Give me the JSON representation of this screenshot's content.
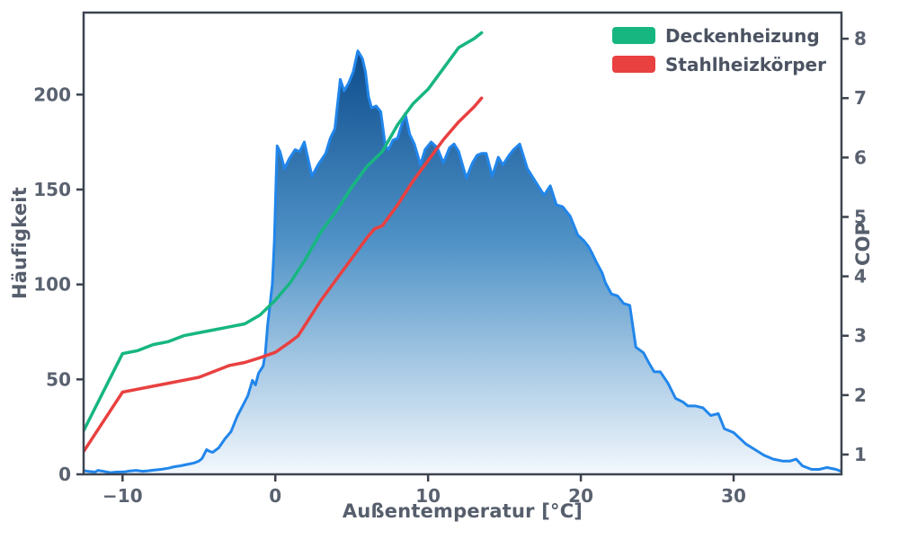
{
  "chart_data": {
    "type": "area+line",
    "xlabel": "Außentemperatur [°C]",
    "ylabel_left": "Häufigkeit",
    "ylabel_right": "COP",
    "x_range": [
      -12.55,
      37.06
    ],
    "x_ticks": [
      {
        "v": -10,
        "label": "−10"
      },
      {
        "v": 0,
        "label": "0"
      },
      {
        "v": 10,
        "label": "10"
      },
      {
        "v": 20,
        "label": "20"
      },
      {
        "v": 30,
        "label": "30"
      }
    ],
    "y_left_range": [
      0,
      243.2
    ],
    "y_left_ticks": [
      {
        "v": 0,
        "label": "0"
      },
      {
        "v": 50,
        "label": "50"
      },
      {
        "v": 100,
        "label": "100"
      },
      {
        "v": 150,
        "label": "150"
      },
      {
        "v": 200,
        "label": "200"
      }
    ],
    "y_right_range": [
      0.667,
      8.44
    ],
    "y_right_ticks": [
      {
        "v": 1,
        "label": "1"
      },
      {
        "v": 2,
        "label": "2"
      },
      {
        "v": 3,
        "label": "3"
      },
      {
        "v": 4,
        "label": "4"
      },
      {
        "v": 5,
        "label": "5"
      },
      {
        "v": 6,
        "label": "6"
      },
      {
        "v": 7,
        "label": "7"
      },
      {
        "v": 8,
        "label": "8"
      }
    ],
    "legend": [
      {
        "label": "Deckenheizung",
        "color": "#17b681"
      },
      {
        "label": "Stahlheizkörper",
        "color": "#e94040"
      }
    ],
    "grid": false,
    "legend_position": "top-right",
    "histogram": {
      "name": "Häufigkeit",
      "axis": "left",
      "line_color": "#2186eb",
      "gradient": [
        "#0d4c8c",
        "#4f92c7",
        "#f3f8fd"
      ],
      "points": [
        [
          -12.55,
          2
        ],
        [
          -12.2,
          1.5
        ],
        [
          -11.8,
          1.2
        ],
        [
          -11.6,
          2.1
        ],
        [
          -11.2,
          1.5
        ],
        [
          -10.8,
          0.9
        ],
        [
          -10.4,
          1.2
        ],
        [
          -9.9,
          1.3
        ],
        [
          -9.5,
          1.8
        ],
        [
          -9.1,
          2.1
        ],
        [
          -8.7,
          1.6
        ],
        [
          -8.4,
          1.8
        ],
        [
          -8.0,
          2.2
        ],
        [
          -7.5,
          2.6
        ],
        [
          -7.0,
          3.2
        ],
        [
          -6.6,
          4
        ],
        [
          -6.2,
          4.5
        ],
        [
          -5.9,
          5
        ],
        [
          -5.6,
          5.5
        ],
        [
          -5.3,
          6
        ],
        [
          -5.0,
          7
        ],
        [
          -4.8,
          8.3
        ],
        [
          -4.5,
          13
        ],
        [
          -4.3,
          12.1
        ],
        [
          -4.1,
          11.6
        ],
        [
          -3.7,
          14
        ],
        [
          -3.3,
          18.7
        ],
        [
          -2.9,
          22.5
        ],
        [
          -2.5,
          30.5
        ],
        [
          -2.1,
          36.7
        ],
        [
          -1.8,
          41.4
        ],
        [
          -1.5,
          49.5
        ],
        [
          -1.3,
          47.1
        ],
        [
          -1.1,
          53.3
        ],
        [
          -0.8,
          57
        ],
        [
          -0.65,
          64
        ],
        [
          -0.5,
          79
        ],
        [
          -0.2,
          100
        ],
        [
          -0.06,
          123
        ],
        [
          0.05,
          155
        ],
        [
          0.12,
          173
        ],
        [
          0.3,
          170
        ],
        [
          0.6,
          161
        ],
        [
          0.9,
          166
        ],
        [
          1.3,
          171
        ],
        [
          1.6,
          170
        ],
        [
          1.9,
          175
        ],
        [
          2.4,
          157
        ],
        [
          2.8,
          163
        ],
        [
          3.3,
          169
        ],
        [
          3.6,
          177
        ],
        [
          3.9,
          182
        ],
        [
          4.25,
          208
        ],
        [
          4.5,
          202
        ],
        [
          4.8,
          206
        ],
        [
          5.1,
          212
        ],
        [
          5.4,
          223
        ],
        [
          5.7,
          219
        ],
        [
          5.9,
          212
        ],
        [
          6.1,
          199
        ],
        [
          6.3,
          193
        ],
        [
          6.6,
          194
        ],
        [
          6.9,
          191
        ],
        [
          7.2,
          173
        ],
        [
          7.4,
          171
        ],
        [
          7.7,
          176
        ],
        [
          8.0,
          177
        ],
        [
          8.5,
          190
        ],
        [
          8.8,
          179
        ],
        [
          9.1,
          174
        ],
        [
          9.5,
          163
        ],
        [
          9.8,
          171
        ],
        [
          10.2,
          175
        ],
        [
          10.6,
          172
        ],
        [
          11.0,
          164
        ],
        [
          11.4,
          172
        ],
        [
          11.7,
          174
        ],
        [
          12.0,
          170
        ],
        [
          12.5,
          156
        ],
        [
          12.9,
          164
        ],
        [
          13.2,
          168
        ],
        [
          13.5,
          169
        ],
        [
          13.8,
          169
        ],
        [
          14.2,
          157
        ],
        [
          14.6,
          167
        ],
        [
          14.9,
          163
        ],
        [
          15.3,
          168
        ],
        [
          15.6,
          171
        ],
        [
          16.0,
          174
        ],
        [
          16.5,
          161
        ],
        [
          17.2,
          152
        ],
        [
          17.6,
          147
        ],
        [
          18.0,
          152
        ],
        [
          18.4,
          142
        ],
        [
          18.8,
          141
        ],
        [
          19.3,
          136
        ],
        [
          19.8,
          126
        ],
        [
          20.2,
          123
        ],
        [
          20.5,
          120
        ],
        [
          20.7,
          117
        ],
        [
          21.0,
          112
        ],
        [
          21.4,
          106
        ],
        [
          21.6,
          101
        ],
        [
          22.0,
          95
        ],
        [
          22.4,
          94
        ],
        [
          22.8,
          90
        ],
        [
          23.2,
          89
        ],
        [
          23.6,
          67
        ],
        [
          24.1,
          64
        ],
        [
          24.5,
          58
        ],
        [
          24.8,
          54
        ],
        [
          25.2,
          54
        ],
        [
          25.7,
          48
        ],
        [
          26.2,
          40
        ],
        [
          26.7,
          38
        ],
        [
          27.0,
          36
        ],
        [
          27.5,
          36
        ],
        [
          28.0,
          35
        ],
        [
          28.5,
          31
        ],
        [
          29.0,
          32
        ],
        [
          29.4,
          24
        ],
        [
          30.0,
          22
        ],
        [
          30.4,
          19
        ],
        [
          30.8,
          16
        ],
        [
          31.4,
          13
        ],
        [
          32.0,
          10
        ],
        [
          32.6,
          8
        ],
        [
          33.2,
          7
        ],
        [
          33.7,
          7
        ],
        [
          34.1,
          8
        ],
        [
          34.5,
          4.5
        ],
        [
          35.1,
          2.6
        ],
        [
          35.6,
          2.6
        ],
        [
          36.1,
          3.6
        ],
        [
          36.7,
          2.6
        ],
        [
          37.06,
          1.5
        ]
      ]
    },
    "series": [
      {
        "name": "Deckenheizung",
        "axis": "right",
        "color": "#17b681",
        "points": [
          [
            -12.55,
            1.4
          ],
          [
            -10,
            2.7
          ],
          [
            -9,
            2.75
          ],
          [
            -8,
            2.85
          ],
          [
            -7,
            2.9
          ],
          [
            -6,
            3.0
          ],
          [
            -5,
            3.05
          ],
          [
            -4,
            3.1
          ],
          [
            -3,
            3.15
          ],
          [
            -2,
            3.2
          ],
          [
            -1,
            3.35
          ],
          [
            0,
            3.6
          ],
          [
            1,
            3.9
          ],
          [
            2,
            4.3
          ],
          [
            3,
            4.75
          ],
          [
            4,
            5.1
          ],
          [
            5,
            5.5
          ],
          [
            6,
            5.85
          ],
          [
            7,
            6.1
          ],
          [
            8,
            6.55
          ],
          [
            9,
            6.9
          ],
          [
            10,
            7.15
          ],
          [
            11,
            7.5
          ],
          [
            12,
            7.85
          ],
          [
            13,
            8.0
          ],
          [
            13.5,
            8.1
          ]
        ]
      },
      {
        "name": "Stahlheizkörper",
        "axis": "right",
        "color": "#e94040",
        "points": [
          [
            -12.55,
            1.05
          ],
          [
            -10,
            2.05
          ],
          [
            -9,
            2.1
          ],
          [
            -8,
            2.15
          ],
          [
            -7,
            2.2
          ],
          [
            -6,
            2.25
          ],
          [
            -5,
            2.3
          ],
          [
            -4,
            2.4
          ],
          [
            -3,
            2.5
          ],
          [
            -2,
            2.55
          ],
          [
            -1,
            2.63
          ],
          [
            0,
            2.72
          ],
          [
            1,
            2.9
          ],
          [
            1.5,
            3.0
          ],
          [
            2,
            3.2
          ],
          [
            3,
            3.6
          ],
          [
            4,
            3.95
          ],
          [
            5,
            4.3
          ],
          [
            6,
            4.65
          ],
          [
            6.5,
            4.8
          ],
          [
            7,
            4.85
          ],
          [
            8,
            5.2
          ],
          [
            9,
            5.6
          ],
          [
            10,
            5.95
          ],
          [
            11,
            6.3
          ],
          [
            12,
            6.6
          ],
          [
            13,
            6.85
          ],
          [
            13.5,
            7.0
          ]
        ]
      }
    ],
    "style": {
      "spine_color": "#3d4450",
      "tick_label_color": "#5a6270",
      "background": "#ffffff"
    }
  }
}
